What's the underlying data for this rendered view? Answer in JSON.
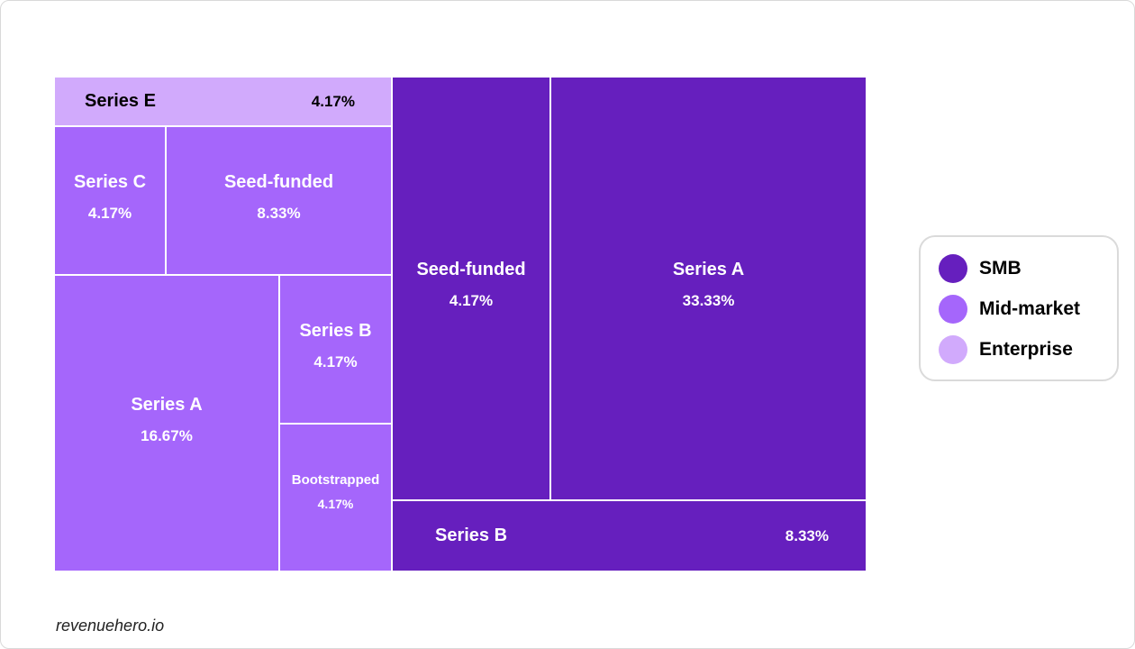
{
  "colors": {
    "smb": "#661fbe",
    "mid_market": "#a566fb",
    "enterprise": "#d1aafc",
    "label_light": "#ffffff",
    "label_dark": "#000000"
  },
  "chart_data": {
    "type": "treemap",
    "groups": [
      {
        "name": "SMB",
        "color": "#661fbe",
        "children": [
          {
            "name": "Series A",
            "value": 33.33,
            "display": "33.33%"
          },
          {
            "name": "Seed-funded",
            "value": 4.17,
            "display": "4.17%"
          },
          {
            "name": "Series B",
            "value": 8.33,
            "display": "8.33%"
          }
        ]
      },
      {
        "name": "Mid-market",
        "color": "#a566fb",
        "children": [
          {
            "name": "Series A",
            "value": 16.67,
            "display": "16.67%"
          },
          {
            "name": "Seed-funded",
            "value": 8.33,
            "display": "8.33%"
          },
          {
            "name": "Series C",
            "value": 4.17,
            "display": "4.17%"
          },
          {
            "name": "Series B",
            "value": 4.17,
            "display": "4.17%"
          },
          {
            "name": "Bootstrapped",
            "value": 4.17,
            "display": "4.17%"
          }
        ]
      },
      {
        "name": "Enterprise",
        "color": "#d1aafc",
        "children": [
          {
            "name": "Series E",
            "value": 4.17,
            "display": "4.17%"
          }
        ]
      }
    ],
    "legend": {
      "placement": "right",
      "items": [
        {
          "label": "SMB",
          "color": "#661fbe"
        },
        {
          "label": "Mid-market",
          "color": "#a566fb"
        },
        {
          "label": "Enterprise",
          "color": "#d1aafc"
        }
      ]
    }
  },
  "footer": {
    "text": "revenuehero.io"
  }
}
